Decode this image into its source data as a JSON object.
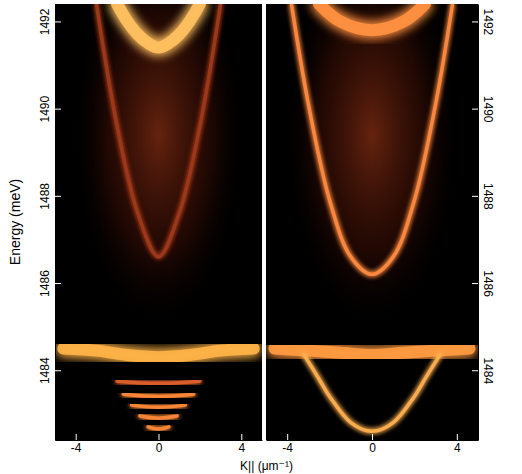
{
  "chart_data": [
    {
      "type": "line",
      "y_label": "Energy (meV)",
      "x_label": "K|| (μm⁻¹)",
      "xlim": [
        -5,
        5
      ],
      "ylim": [
        1482.4,
        1492.4
      ],
      "xticks": [
        -4,
        0,
        4
      ],
      "yticks": [
        1484,
        1486,
        1488,
        1490,
        1492
      ],
      "series": [
        {
          "color": "#a03a1c",
          "line_style": "thin",
          "x": [
            -3,
            -2,
            -1,
            0,
            1,
            2,
            3
          ],
          "values": [
            1492.4,
            1489.6,
            1487.6,
            1486.6,
            1487.6,
            1489.6,
            1492.4
          ]
        },
        {
          "color": "#ffc060",
          "line_style": "broad",
          "x": [
            -2,
            -1.5,
            -1,
            -0.5,
            0,
            0.5,
            1,
            1.5,
            2
          ],
          "values": [
            1492.4,
            1492.0,
            1491.7,
            1491.5,
            1491.4,
            1491.5,
            1491.7,
            1492.0,
            1492.4
          ]
        },
        {
          "color": "#ffb347",
          "line_style": "broad",
          "x": [
            -4.6,
            -3,
            -1.5,
            0,
            1.5,
            3,
            4.6
          ],
          "values": [
            1484.5,
            1484.45,
            1484.35,
            1484.3,
            1484.35,
            1484.45,
            1484.5
          ]
        },
        {
          "color": "#ff8a3a",
          "line_style": "thin",
          "x": [
            -0.5,
            0,
            0.5
          ],
          "values": [
            1482.7,
            1482.65,
            1482.7
          ]
        },
        {
          "color": "#ff8a3a",
          "line_style": "thin",
          "x": [
            -0.9,
            0,
            0.9
          ],
          "values": [
            1482.95,
            1482.9,
            1482.95
          ]
        },
        {
          "color": "#ff8a3a",
          "line_style": "thin",
          "x": [
            -1.3,
            0,
            1.3
          ],
          "values": [
            1483.2,
            1483.15,
            1483.2
          ]
        },
        {
          "color": "#ff8a3a",
          "line_style": "thin",
          "x": [
            -1.7,
            0,
            1.7
          ],
          "values": [
            1483.45,
            1483.4,
            1483.45
          ]
        },
        {
          "color": "#e0602a",
          "line_style": "thin",
          "x": [
            -2.0,
            0,
            2.0
          ],
          "values": [
            1483.75,
            1483.7,
            1483.75
          ]
        }
      ]
    },
    {
      "type": "line",
      "xlim": [
        -5,
        5
      ],
      "ylim": [
        1482.4,
        1492.4
      ],
      "xticks": [
        -4,
        0,
        4
      ],
      "yticks": [
        1484,
        1486,
        1488,
        1490,
        1492
      ],
      "series": [
        {
          "color": "#ff9040",
          "line_style": "broad",
          "x": [
            -2.5,
            -1.5,
            0,
            1.5,
            2.5
          ],
          "values": [
            1492.4,
            1492.0,
            1491.8,
            1492.0,
            1492.4
          ]
        },
        {
          "color": "#ff8a40",
          "line_style": "thin",
          "x": [
            -3.8,
            -3,
            -2,
            -1,
            0,
            1,
            2,
            3,
            3.8
          ],
          "values": [
            1492.4,
            1490.1,
            1487.9,
            1486.6,
            1486.2,
            1486.6,
            1487.9,
            1490.1,
            1492.4
          ]
        },
        {
          "color": "#ff9a40",
          "line_style": "broad",
          "x": [
            -4.6,
            -3,
            -1.5,
            0,
            1.5,
            3,
            4.6
          ],
          "values": [
            1484.5,
            1484.45,
            1484.4,
            1484.35,
            1484.4,
            1484.45,
            1484.5
          ]
        },
        {
          "color": "#ffb050",
          "line_style": "thin",
          "x": [
            -3.2,
            -2.5,
            -2,
            -1,
            0,
            1,
            2,
            2.5,
            3.2
          ],
          "values": [
            1484.35,
            1483.8,
            1483.4,
            1482.8,
            1482.6,
            1482.8,
            1483.4,
            1483.8,
            1484.35
          ]
        }
      ]
    }
  ]
}
